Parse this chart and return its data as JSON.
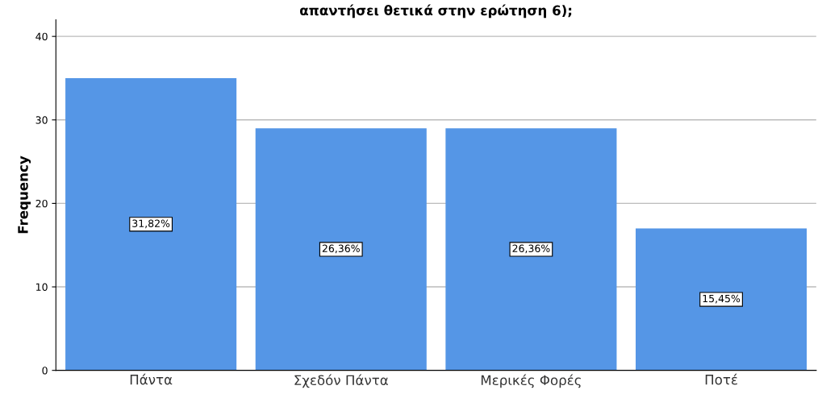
{
  "chart_data": {
    "type": "bar",
    "title": "απαντήσει θετικά στην ερώτηση 6);",
    "ylabel": "Frequency",
    "categories": [
      "Πάντα",
      "Σχεδόν Πάντα",
      "Μερικές Φορές",
      "Ποτέ"
    ],
    "values": [
      35,
      29,
      29,
      17
    ],
    "color": "#5596e6",
    "annotations": [
      "31,82%",
      "26,36%",
      "26,36%",
      "15,45%"
    ],
    "ylim": [
      0,
      42
    ],
    "yticks": [
      0,
      10,
      20,
      30,
      40
    ],
    "grid": "y",
    "legend": false
  }
}
